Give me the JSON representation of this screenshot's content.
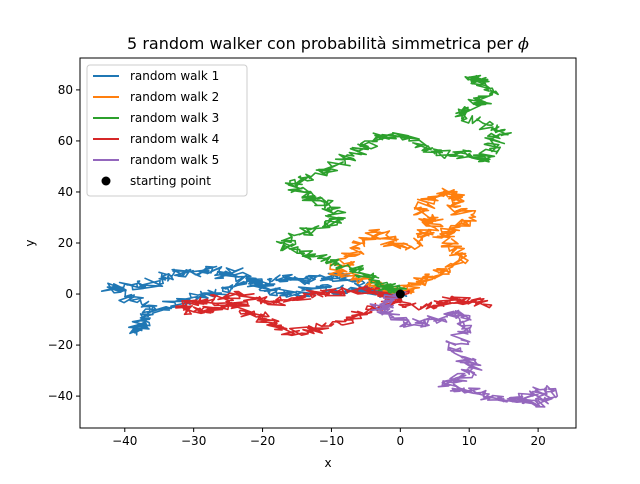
{
  "chart_data": {
    "type": "line",
    "title": "5 random walker con probabilità simmetrica per ",
    "title_symbol": "ϕ",
    "xlabel": "x",
    "ylabel": "y",
    "xlim": [
      -46.5,
      25.5
    ],
    "ylim": [
      -52.5,
      92.5
    ],
    "x_ticks": [
      -40,
      -30,
      -20,
      -10,
      0,
      10,
      20
    ],
    "y_ticks": [
      -40,
      -20,
      0,
      20,
      40,
      60,
      80
    ],
    "x_tick_labels": [
      "−40",
      "−30",
      "−20",
      "−10",
      "0",
      "10",
      "20"
    ],
    "y_tick_labels": [
      "−40",
      "−20",
      "0",
      "20",
      "40",
      "60",
      "80"
    ],
    "grid": false,
    "legend_position": "top-left",
    "starting_point": {
      "name": "starting point",
      "x": 0,
      "y": 0,
      "color": "#000000"
    },
    "series": [
      {
        "name": "random walk 1",
        "color": "#1f77b4",
        "points": [
          [
            0,
            0
          ],
          [
            -2,
            1
          ],
          [
            -5,
            3
          ],
          [
            -8,
            6
          ],
          [
            -10,
            7
          ],
          [
            -13,
            5
          ],
          [
            -16,
            6
          ],
          [
            -19,
            6
          ],
          [
            -22,
            4
          ],
          [
            -24,
            9
          ],
          [
            -26,
            7
          ],
          [
            -28,
            10
          ],
          [
            -30,
            8
          ],
          [
            -33,
            9
          ],
          [
            -35,
            6
          ],
          [
            -37,
            3
          ],
          [
            -40,
            4
          ],
          [
            -42,
            2
          ],
          [
            -40,
            -1
          ],
          [
            -37,
            -4
          ],
          [
            -36,
            -8
          ],
          [
            -38,
            -12
          ],
          [
            -39,
            -15
          ],
          [
            -37,
            -10
          ],
          [
            -34,
            -5
          ],
          [
            -31,
            -2
          ],
          [
            -28,
            0
          ],
          [
            -25,
            2
          ],
          [
            -22,
            5
          ],
          [
            -20,
            3
          ],
          [
            -18,
            1
          ],
          [
            -15,
            0
          ],
          [
            -13,
            2
          ],
          [
            -10,
            3
          ],
          [
            -8,
            1
          ],
          [
            -5,
            2
          ],
          [
            -3,
            0
          ],
          [
            -1,
            1
          ],
          [
            0,
            0
          ]
        ]
      },
      {
        "name": "random walk 2",
        "color": "#ff7f0e",
        "points": [
          [
            0,
            0
          ],
          [
            -2,
            2
          ],
          [
            -4,
            5
          ],
          [
            -7,
            6
          ],
          [
            -9,
            9
          ],
          [
            -8,
            14
          ],
          [
            -6,
            18
          ],
          [
            -5,
            22
          ],
          [
            -3,
            24
          ],
          [
            -1,
            20
          ],
          [
            1,
            18
          ],
          [
            3,
            22
          ],
          [
            5,
            26
          ],
          [
            4,
            30
          ],
          [
            3,
            34
          ],
          [
            5,
            38
          ],
          [
            7,
            40
          ],
          [
            9,
            38
          ],
          [
            8,
            34
          ],
          [
            10,
            30
          ],
          [
            8,
            26
          ],
          [
            6,
            22
          ],
          [
            8,
            18
          ],
          [
            9,
            14
          ],
          [
            7,
            10
          ],
          [
            5,
            7
          ],
          [
            3,
            5
          ],
          [
            1,
            3
          ],
          [
            0,
            0
          ]
        ]
      },
      {
        "name": "random walk 3",
        "color": "#2ca02c",
        "points": [
          [
            0,
            0
          ],
          [
            -2,
            3
          ],
          [
            -4,
            6
          ],
          [
            -6,
            9
          ],
          [
            -9,
            12
          ],
          [
            -12,
            14
          ],
          [
            -15,
            16
          ],
          [
            -17,
            20
          ],
          [
            -14,
            24
          ],
          [
            -11,
            27
          ],
          [
            -9,
            30
          ],
          [
            -10,
            34
          ],
          [
            -12,
            37
          ],
          [
            -14,
            40
          ],
          [
            -16,
            43
          ],
          [
            -13,
            46
          ],
          [
            -10,
            49
          ],
          [
            -8,
            53
          ],
          [
            -6,
            56
          ],
          [
            -4,
            60
          ],
          [
            -2,
            62
          ],
          [
            1,
            62
          ],
          [
            3,
            58
          ],
          [
            5,
            55
          ],
          [
            8,
            54
          ],
          [
            10,
            55
          ],
          [
            12,
            52
          ],
          [
            13,
            57
          ],
          [
            14,
            62
          ],
          [
            15,
            64
          ],
          [
            12,
            67
          ],
          [
            9,
            70
          ],
          [
            11,
            74
          ],
          [
            13,
            78
          ],
          [
            12,
            82
          ],
          [
            10,
            85
          ],
          [
            12,
            83
          ]
        ]
      },
      {
        "name": "random walk 4",
        "color": "#d62728",
        "points": [
          [
            0,
            0
          ],
          [
            -2,
            -4
          ],
          [
            -5,
            -6
          ],
          [
            -7,
            -9
          ],
          [
            -10,
            -12
          ],
          [
            -13,
            -14
          ],
          [
            -16,
            -15
          ],
          [
            -18,
            -12
          ],
          [
            -20,
            -9
          ],
          [
            -22,
            -7
          ],
          [
            -24,
            -4
          ],
          [
            -26,
            -5
          ],
          [
            -28,
            -6
          ],
          [
            -30,
            -7
          ],
          [
            -32,
            -5
          ],
          [
            -30,
            -3
          ],
          [
            -27,
            -2
          ],
          [
            -24,
            0
          ],
          [
            -21,
            -2
          ],
          [
            -18,
            -3
          ],
          [
            -15,
            -2
          ],
          [
            -12,
            0
          ],
          [
            -9,
            1
          ],
          [
            -6,
            2
          ],
          [
            -3,
            0
          ],
          [
            0,
            -3
          ],
          [
            3,
            -5
          ],
          [
            6,
            -4
          ],
          [
            8,
            -2
          ],
          [
            10,
            -3
          ],
          [
            12,
            -4
          ]
        ]
      },
      {
        "name": "random walk 5",
        "color": "#9467bd",
        "points": [
          [
            0,
            0
          ],
          [
            -2,
            -3
          ],
          [
            -3,
            -6
          ],
          [
            -1,
            -9
          ],
          [
            2,
            -12
          ],
          [
            5,
            -10
          ],
          [
            8,
            -7
          ],
          [
            10,
            -10
          ],
          [
            9,
            -15
          ],
          [
            8,
            -20
          ],
          [
            9,
            -25
          ],
          [
            11,
            -27
          ],
          [
            10,
            -30
          ],
          [
            8,
            -33
          ],
          [
            7,
            -36
          ],
          [
            9,
            -38
          ],
          [
            12,
            -39
          ],
          [
            15,
            -41
          ],
          [
            17,
            -42
          ],
          [
            19,
            -40
          ],
          [
            21,
            -37
          ],
          [
            22,
            -41
          ],
          [
            20,
            -43
          ],
          [
            18,
            -42
          ]
        ]
      }
    ]
  }
}
